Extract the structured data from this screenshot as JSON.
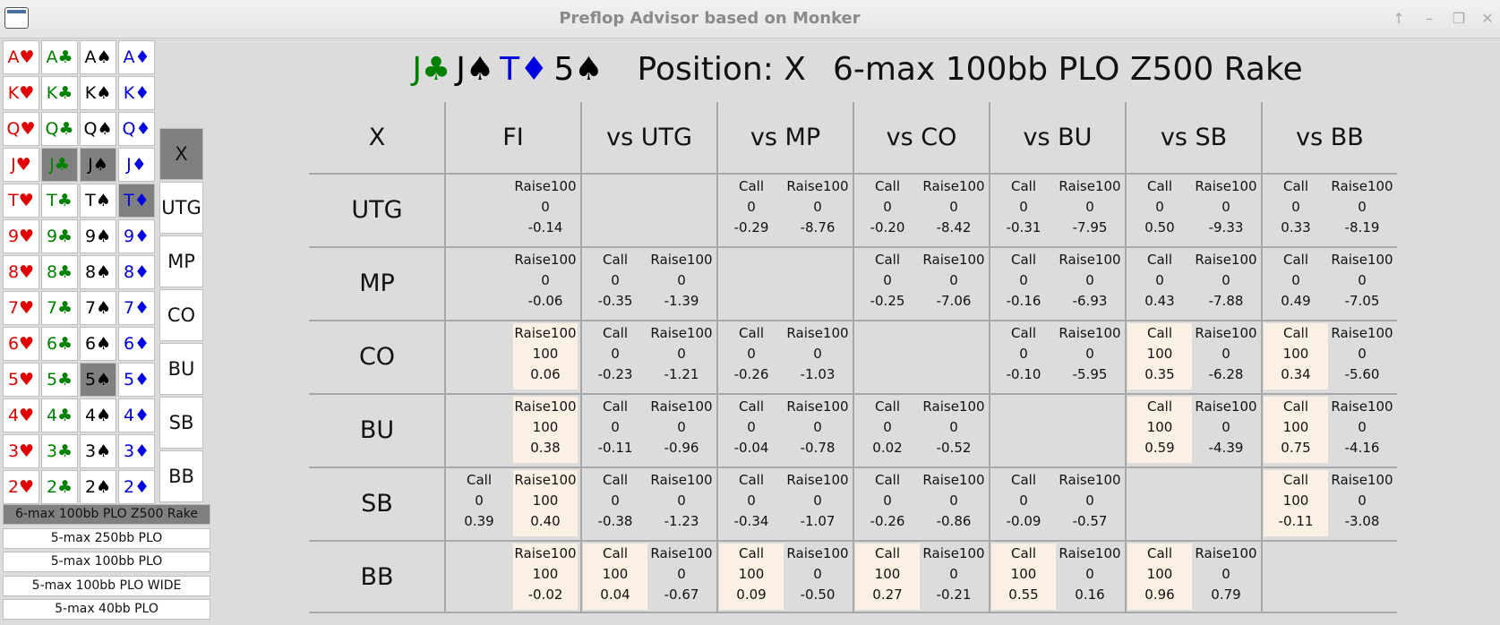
{
  "window": {
    "title": "Preflop Advisor based on Monker"
  },
  "colors": {
    "hearts": "#e00000",
    "clubs": "#008000",
    "spades": "#000000",
    "diamonds": "#0000e0",
    "highlight": "#fbf0e4",
    "selected": "#808080"
  },
  "cards": {
    "rows": [
      [
        "A♥",
        "A♣",
        "A♠",
        "A♦"
      ],
      [
        "K♥",
        "K♣",
        "K♠",
        "K♦"
      ],
      [
        "Q♥",
        "Q♣",
        "Q♠",
        "Q♦"
      ],
      [
        "J♥",
        "J♣",
        "J♠",
        "J♦"
      ],
      [
        "T♥",
        "T♣",
        "T♠",
        "T♦"
      ],
      [
        "9♥",
        "9♣",
        "9♠",
        "9♦"
      ],
      [
        "8♥",
        "8♣",
        "8♠",
        "8♦"
      ],
      [
        "7♥",
        "7♣",
        "7♠",
        "7♦"
      ],
      [
        "6♥",
        "6♣",
        "6♠",
        "6♦"
      ],
      [
        "5♥",
        "5♣",
        "5♠",
        "5♦"
      ],
      [
        "4♥",
        "4♣",
        "4♠",
        "4♦"
      ],
      [
        "3♥",
        "3♣",
        "3♠",
        "3♦"
      ],
      [
        "2♥",
        "2♣",
        "2♠",
        "2♦"
      ]
    ],
    "selected": [
      "J♣",
      "J♠",
      "T♦",
      "5♠"
    ]
  },
  "positions": {
    "items": [
      "X",
      "UTG",
      "MP",
      "CO",
      "BU",
      "SB",
      "BB"
    ],
    "selected": "X"
  },
  "games": {
    "items": [
      "6-max 100bb PLO Z500 Rake",
      "5-max 250bb PLO",
      "5-max 100bb PLO",
      "5-max 100bb PLO  WIDE",
      "5-max 40bb PLO"
    ],
    "selected": "6-max 100bb PLO Z500 Rake"
  },
  "header": {
    "hand": [
      "J♣",
      "J♠",
      "T♦",
      "5♠"
    ],
    "position": "Position: X",
    "game": "6-max 100bb PLO Z500 Rake"
  },
  "table": {
    "corner": "X",
    "columns": [
      "FI",
      "vs UTG",
      "vs MP",
      "vs CO",
      "vs BU",
      "vs SB",
      "vs BB"
    ],
    "rows": [
      {
        "label": "UTG",
        "cells": [
          [
            {
              "action": "Raise100",
              "freq": "0",
              "ev": "-0.14"
            }
          ],
          [],
          [
            {
              "action": "Call",
              "freq": "0",
              "ev": "-0.29"
            },
            {
              "action": "Raise100",
              "freq": "0",
              "ev": "-8.76"
            }
          ],
          [
            {
              "action": "Call",
              "freq": "0",
              "ev": "-0.20"
            },
            {
              "action": "Raise100",
              "freq": "0",
              "ev": "-8.42"
            }
          ],
          [
            {
              "action": "Call",
              "freq": "0",
              "ev": "-0.31"
            },
            {
              "action": "Raise100",
              "freq": "0",
              "ev": "-7.95"
            }
          ],
          [
            {
              "action": "Call",
              "freq": "0",
              "ev": "0.50"
            },
            {
              "action": "Raise100",
              "freq": "0",
              "ev": "-9.33"
            }
          ],
          [
            {
              "action": "Call",
              "freq": "0",
              "ev": "0.33"
            },
            {
              "action": "Raise100",
              "freq": "0",
              "ev": "-8.19"
            }
          ]
        ]
      },
      {
        "label": "MP",
        "cells": [
          [
            {
              "action": "Raise100",
              "freq": "0",
              "ev": "-0.06"
            }
          ],
          [
            {
              "action": "Call",
              "freq": "0",
              "ev": "-0.35"
            },
            {
              "action": "Raise100",
              "freq": "0",
              "ev": "-1.39"
            }
          ],
          [],
          [
            {
              "action": "Call",
              "freq": "0",
              "ev": "-0.25"
            },
            {
              "action": "Raise100",
              "freq": "0",
              "ev": "-7.06"
            }
          ],
          [
            {
              "action": "Call",
              "freq": "0",
              "ev": "-0.16"
            },
            {
              "action": "Raise100",
              "freq": "0",
              "ev": "-6.93"
            }
          ],
          [
            {
              "action": "Call",
              "freq": "0",
              "ev": "0.43"
            },
            {
              "action": "Raise100",
              "freq": "0",
              "ev": "-7.88"
            }
          ],
          [
            {
              "action": "Call",
              "freq": "0",
              "ev": "0.49"
            },
            {
              "action": "Raise100",
              "freq": "0",
              "ev": "-7.05"
            }
          ]
        ]
      },
      {
        "label": "CO",
        "cells": [
          [
            {
              "action": "Raise100",
              "freq": "100",
              "ev": "0.06"
            }
          ],
          [
            {
              "action": "Call",
              "freq": "0",
              "ev": "-0.23"
            },
            {
              "action": "Raise100",
              "freq": "0",
              "ev": "-1.21"
            }
          ],
          [
            {
              "action": "Call",
              "freq": "0",
              "ev": "-0.26"
            },
            {
              "action": "Raise100",
              "freq": "0",
              "ev": "-1.03"
            }
          ],
          [],
          [
            {
              "action": "Call",
              "freq": "0",
              "ev": "-0.10"
            },
            {
              "action": "Raise100",
              "freq": "0",
              "ev": "-5.95"
            }
          ],
          [
            {
              "action": "Call",
              "freq": "100",
              "ev": "0.35"
            },
            {
              "action": "Raise100",
              "freq": "0",
              "ev": "-6.28"
            }
          ],
          [
            {
              "action": "Call",
              "freq": "100",
              "ev": "0.34"
            },
            {
              "action": "Raise100",
              "freq": "0",
              "ev": "-5.60"
            }
          ]
        ]
      },
      {
        "label": "BU",
        "cells": [
          [
            {
              "action": "Raise100",
              "freq": "100",
              "ev": "0.38"
            }
          ],
          [
            {
              "action": "Call",
              "freq": "0",
              "ev": "-0.11"
            },
            {
              "action": "Raise100",
              "freq": "0",
              "ev": "-0.96"
            }
          ],
          [
            {
              "action": "Call",
              "freq": "0",
              "ev": "-0.04"
            },
            {
              "action": "Raise100",
              "freq": "0",
              "ev": "-0.78"
            }
          ],
          [
            {
              "action": "Call",
              "freq": "0",
              "ev": "0.02"
            },
            {
              "action": "Raise100",
              "freq": "0",
              "ev": "-0.52"
            }
          ],
          [],
          [
            {
              "action": "Call",
              "freq": "100",
              "ev": "0.59"
            },
            {
              "action": "Raise100",
              "freq": "0",
              "ev": "-4.39"
            }
          ],
          [
            {
              "action": "Call",
              "freq": "100",
              "ev": "0.75"
            },
            {
              "action": "Raise100",
              "freq": "0",
              "ev": "-4.16"
            }
          ]
        ]
      },
      {
        "label": "SB",
        "cells": [
          [
            {
              "action": "Call",
              "freq": "0",
              "ev": "0.39"
            },
            {
              "action": "Raise100",
              "freq": "100",
              "ev": "0.40"
            }
          ],
          [
            {
              "action": "Call",
              "freq": "0",
              "ev": "-0.38"
            },
            {
              "action": "Raise100",
              "freq": "0",
              "ev": "-1.23"
            }
          ],
          [
            {
              "action": "Call",
              "freq": "0",
              "ev": "-0.34"
            },
            {
              "action": "Raise100",
              "freq": "0",
              "ev": "-1.07"
            }
          ],
          [
            {
              "action": "Call",
              "freq": "0",
              "ev": "-0.26"
            },
            {
              "action": "Raise100",
              "freq": "0",
              "ev": "-0.86"
            }
          ],
          [
            {
              "action": "Call",
              "freq": "0",
              "ev": "-0.09"
            },
            {
              "action": "Raise100",
              "freq": "0",
              "ev": "-0.57"
            }
          ],
          [],
          [
            {
              "action": "Call",
              "freq": "100",
              "ev": "-0.11"
            },
            {
              "action": "Raise100",
              "freq": "0",
              "ev": "-3.08"
            }
          ]
        ]
      },
      {
        "label": "BB",
        "cells": [
          [
            {
              "action": "Raise100",
              "freq": "100",
              "ev": "-0.02"
            }
          ],
          [
            {
              "action": "Call",
              "freq": "100",
              "ev": "0.04"
            },
            {
              "action": "Raise100",
              "freq": "0",
              "ev": "-0.67"
            }
          ],
          [
            {
              "action": "Call",
              "freq": "100",
              "ev": "0.09"
            },
            {
              "action": "Raise100",
              "freq": "0",
              "ev": "-0.50"
            }
          ],
          [
            {
              "action": "Call",
              "freq": "100",
              "ev": "0.27"
            },
            {
              "action": "Raise100",
              "freq": "0",
              "ev": "-0.21"
            }
          ],
          [
            {
              "action": "Call",
              "freq": "100",
              "ev": "0.55"
            },
            {
              "action": "Raise100",
              "freq": "0",
              "ev": "0.16"
            }
          ],
          [
            {
              "action": "Call",
              "freq": "100",
              "ev": "0.96"
            },
            {
              "action": "Raise100",
              "freq": "0",
              "ev": "0.79"
            }
          ],
          []
        ]
      }
    ]
  }
}
